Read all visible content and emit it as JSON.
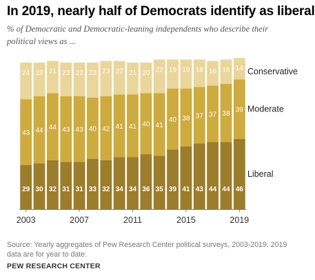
{
  "title": "In 2019, nearly half of Democrats identify as liberal",
  "subtitle": "% of Democratic and Democratic-leaning independents who describe their political views as ...",
  "source": "Source: Yearly aggregates of Pew Research Center political surveys, 2003-2019. 2019 data are for year to date.",
  "org": "PEW RESEARCH CENTER",
  "colors": {
    "liberal": "#9c7d2b",
    "moderate": "#ceab3e",
    "conservative": "#ead59a",
    "label_dark": "#ffffff",
    "label_light": "#ffffff"
  },
  "chart_data": {
    "type": "bar",
    "stacked": true,
    "x": [
      2003,
      2004,
      2005,
      2006,
      2007,
      2008,
      2009,
      2010,
      2011,
      2012,
      2013,
      2014,
      2015,
      2016,
      2017,
      2018,
      2019
    ],
    "x_tick_labels": [
      "2003",
      "2007",
      "2011",
      "2015",
      "2019"
    ],
    "series": [
      {
        "name": "Liberal",
        "key": "liberal",
        "values": [
          29,
          30,
          32,
          31,
          31,
          33,
          32,
          34,
          34,
          36,
          35,
          39,
          41,
          43,
          44,
          44,
          46
        ]
      },
      {
        "name": "Moderate",
        "key": "moderate",
        "values": [
          43,
          44,
          44,
          43,
          43,
          40,
          42,
          41,
          41,
          40,
          41,
          40,
          38,
          37,
          37,
          38,
          39
        ]
      },
      {
        "name": "Conservative",
        "key": "conservative",
        "values": [
          24,
          22,
          21,
          22,
          22,
          23,
          23,
          22,
          21,
          20,
          22,
          19,
          19,
          18,
          16,
          16,
          14
        ]
      }
    ],
    "legend_position": "right",
    "grid": false
  }
}
